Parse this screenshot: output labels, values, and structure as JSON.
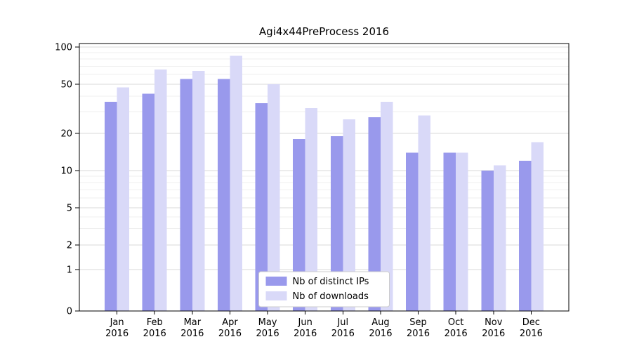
{
  "chart_data": {
    "type": "bar",
    "title": "Agi4x44PreProcess 2016",
    "categories": [
      "Jan",
      "Feb",
      "Mar",
      "Apr",
      "May",
      "Jun",
      "Jul",
      "Aug",
      "Sep",
      "Oct",
      "Nov",
      "Dec"
    ],
    "x_tick_year": "2016",
    "series": [
      {
        "key": "distinct-ips",
        "name": "Nb of distinct IPs",
        "color": "#9999ec",
        "values": [
          36,
          42,
          55,
          55,
          35,
          18,
          19,
          27,
          14,
          14,
          10,
          12
        ]
      },
      {
        "key": "downloads",
        "name": "Nb of downloads",
        "color": "#d9d9f8",
        "values": [
          47,
          66,
          64,
          85,
          50,
          32,
          26,
          36,
          28,
          14,
          11,
          17
        ]
      }
    ],
    "yscale": "symlog",
    "y_ticks": [
      0,
      1,
      2,
      5,
      10,
      20,
      50,
      100
    ],
    "y_minor_ticks": [
      3,
      4,
      6,
      7,
      8,
      9,
      30,
      40,
      60,
      70,
      80,
      90
    ],
    "ylim": [
      0,
      110
    ],
    "grid": true,
    "legend": {
      "position": "lower center",
      "labels": [
        "Nb of distinct IPs",
        "Nb of downloads"
      ]
    },
    "colors": {
      "grid_major": "#d9d9d9",
      "grid_minor": "#efefef",
      "spine": "#000000",
      "legend_border": "#cccccc",
      "background": "#ffffff"
    }
  }
}
